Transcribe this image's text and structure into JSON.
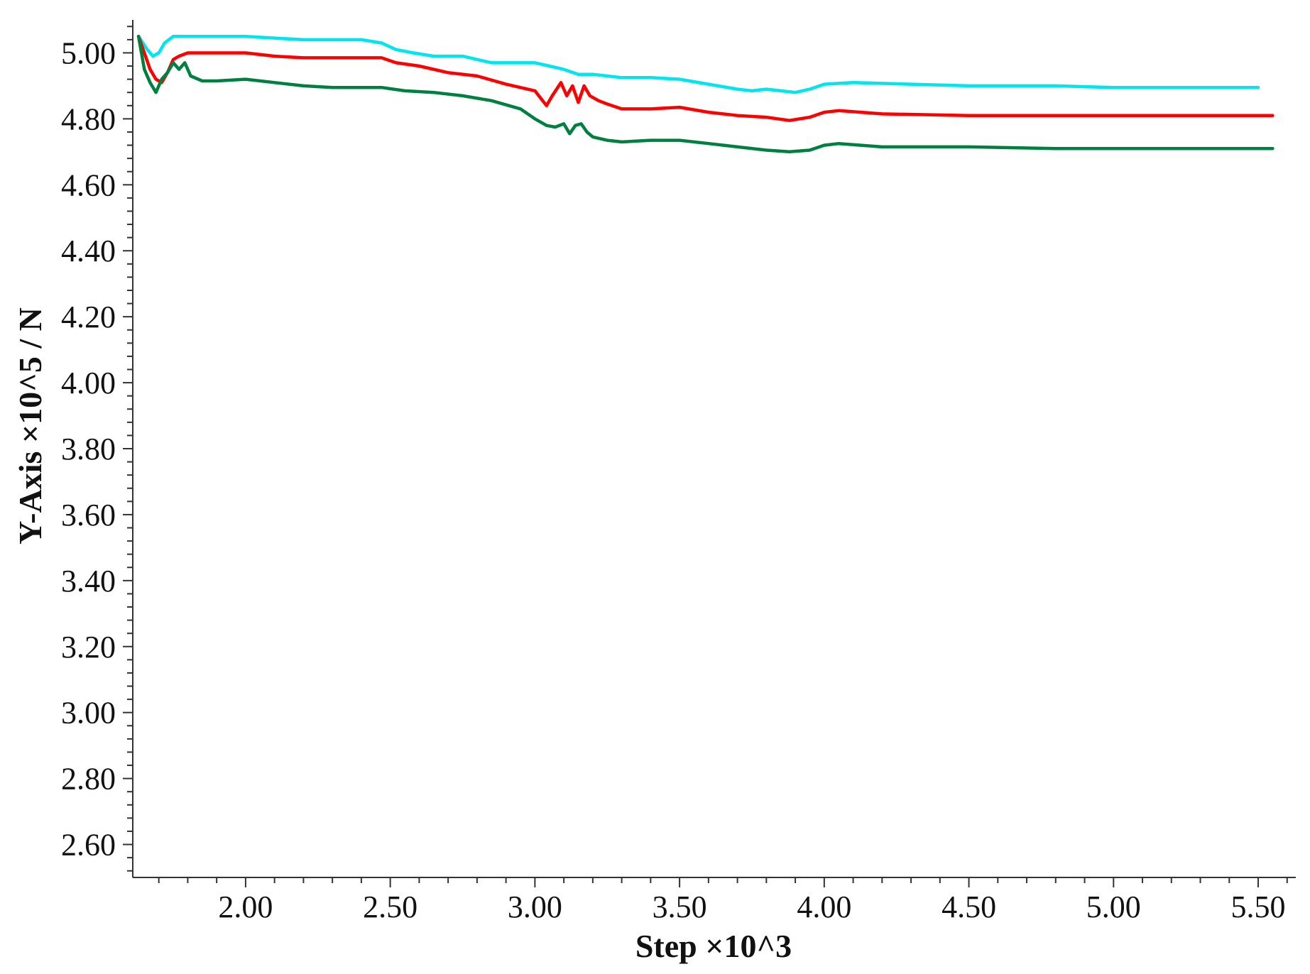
{
  "chart_data": {
    "type": "line",
    "title": "",
    "xlabel": "Step ×10^3",
    "ylabel": "Y-Axis ×10^5 / N",
    "xlim": [
      1.61,
      5.63
    ],
    "ylim": [
      2.5,
      5.1
    ],
    "x_ticks": [
      "2.00",
      "2.50",
      "3.00",
      "3.50",
      "4.00",
      "4.50",
      "5.00",
      "5.50"
    ],
    "y_ticks": [
      "2.60",
      "2.80",
      "3.00",
      "3.20",
      "3.40",
      "3.60",
      "3.80",
      "4.00",
      "4.20",
      "4.40",
      "4.60",
      "4.80",
      "5.00"
    ],
    "grid": false,
    "legend": "none",
    "series": [
      {
        "color": "#00e5ee",
        "x": [
          1.63,
          1.66,
          1.68,
          1.7,
          1.72,
          1.75,
          1.8,
          1.9,
          2.0,
          2.1,
          2.2,
          2.3,
          2.4,
          2.47,
          2.52,
          2.58,
          2.65,
          2.75,
          2.85,
          2.95,
          3.0,
          3.05,
          3.1,
          3.15,
          3.2,
          3.25,
          3.3,
          3.4,
          3.5,
          3.6,
          3.7,
          3.75,
          3.8,
          3.85,
          3.9,
          3.95,
          4.0,
          4.1,
          4.3,
          4.5,
          4.8,
          5.0,
          5.2,
          5.5
        ],
        "y": [
          5.05,
          5.01,
          4.99,
          5.0,
          5.03,
          5.05,
          5.05,
          5.05,
          5.05,
          5.045,
          5.04,
          5.04,
          5.04,
          5.03,
          5.01,
          5.0,
          4.99,
          4.99,
          4.97,
          4.97,
          4.97,
          4.96,
          4.95,
          4.935,
          4.935,
          4.93,
          4.925,
          4.925,
          4.92,
          4.905,
          4.89,
          4.885,
          4.89,
          4.885,
          4.88,
          4.89,
          4.905,
          4.91,
          4.905,
          4.9,
          4.9,
          4.895,
          4.895,
          4.895
        ]
      },
      {
        "color": "#ff0000",
        "x": [
          1.63,
          1.65,
          1.67,
          1.69,
          1.71,
          1.73,
          1.75,
          1.77,
          1.8,
          1.9,
          2.0,
          2.1,
          2.2,
          2.3,
          2.4,
          2.47,
          2.52,
          2.6,
          2.7,
          2.8,
          2.9,
          3.0,
          3.04,
          3.06,
          3.09,
          3.11,
          3.13,
          3.15,
          3.17,
          3.19,
          3.22,
          3.25,
          3.3,
          3.4,
          3.5,
          3.6,
          3.7,
          3.8,
          3.88,
          3.95,
          4.0,
          4.05,
          4.2,
          4.5,
          4.8,
          5.0,
          5.3,
          5.55
        ],
        "y": [
          5.05,
          5.0,
          4.95,
          4.92,
          4.91,
          4.94,
          4.98,
          4.99,
          5.0,
          5.0,
          5.0,
          4.99,
          4.985,
          4.985,
          4.985,
          4.985,
          4.97,
          4.96,
          4.94,
          4.93,
          4.905,
          4.885,
          4.84,
          4.87,
          4.91,
          4.87,
          4.9,
          4.85,
          4.9,
          4.87,
          4.855,
          4.845,
          4.83,
          4.83,
          4.835,
          4.82,
          4.81,
          4.805,
          4.795,
          4.805,
          4.82,
          4.825,
          4.815,
          4.81,
          4.81,
          4.81,
          4.81,
          4.81
        ]
      },
      {
        "color": "#008040",
        "x": [
          1.63,
          1.65,
          1.67,
          1.69,
          1.71,
          1.73,
          1.75,
          1.77,
          1.79,
          1.81,
          1.85,
          1.9,
          2.0,
          2.1,
          2.2,
          2.3,
          2.4,
          2.47,
          2.55,
          2.65,
          2.75,
          2.85,
          2.95,
          3.0,
          3.04,
          3.07,
          3.1,
          3.12,
          3.14,
          3.16,
          3.18,
          3.2,
          3.25,
          3.3,
          3.4,
          3.5,
          3.6,
          3.7,
          3.8,
          3.88,
          3.95,
          4.0,
          4.05,
          4.2,
          4.5,
          4.8,
          5.0,
          5.3,
          5.55
        ],
        "y": [
          5.05,
          4.95,
          4.91,
          4.88,
          4.92,
          4.94,
          4.97,
          4.95,
          4.97,
          4.93,
          4.915,
          4.915,
          4.92,
          4.91,
          4.9,
          4.895,
          4.895,
          4.895,
          4.885,
          4.88,
          4.87,
          4.855,
          4.83,
          4.8,
          4.78,
          4.775,
          4.785,
          4.755,
          4.78,
          4.785,
          4.76,
          4.745,
          4.735,
          4.73,
          4.735,
          4.735,
          4.725,
          4.715,
          4.705,
          4.7,
          4.705,
          4.72,
          4.725,
          4.715,
          4.715,
          4.71,
          4.71,
          4.71,
          4.71
        ]
      }
    ]
  }
}
